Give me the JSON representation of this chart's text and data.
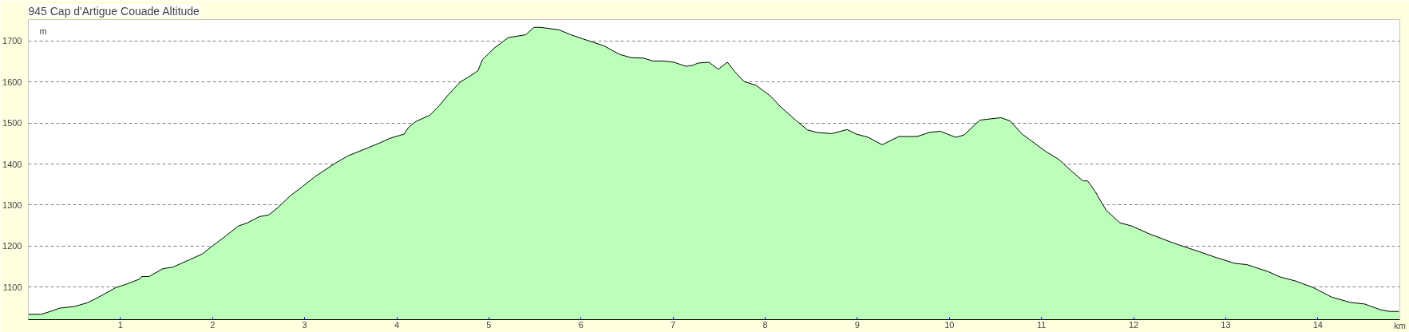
{
  "chart_data": {
    "type": "area",
    "title": "945 Cap d'Artigue Couade Altitude",
    "xlabel": "km",
    "ylabel": "m",
    "xlim": [
      0,
      14.89
    ],
    "ylim": [
      1021,
      1752
    ],
    "xticks": [
      1,
      2,
      3,
      4,
      5,
      6,
      7,
      8,
      9,
      10,
      11,
      12,
      13,
      14
    ],
    "yticks": [
      1100,
      1200,
      1300,
      1400,
      1500,
      1600,
      1700
    ],
    "grid": "y",
    "series": [
      {
        "color": "#bbffbb",
        "x": [
          0,
          0.14,
          0.24,
          0.34,
          0.5,
          0.64,
          0.73,
          0.83,
          0.95,
          1.06,
          1.21,
          1.23,
          1.31,
          1.46,
          1.57,
          1.76,
          1.89,
          1.99,
          2.15,
          2.28,
          2.38,
          2.51,
          2.61,
          2.7,
          2.84,
          2.98,
          3.11,
          3.21,
          3.34,
          3.47,
          3.67,
          3.8,
          3.93,
          4.08,
          4.13,
          4.21,
          4.36,
          4.46,
          4.56,
          4.69,
          4.8,
          4.88,
          4.93,
          5.05,
          5.21,
          5.4,
          5.49,
          5.56,
          5.76,
          5.89,
          6.02,
          6.25,
          6.42,
          6.55,
          6.68,
          6.78,
          6.89,
          7.01,
          7.14,
          7.22,
          7.27,
          7.39,
          7.49,
          7.59,
          7.67,
          7.77,
          7.9,
          8.06,
          8.16,
          8.33,
          8.46,
          8.56,
          8.72,
          8.89,
          8.99,
          9.12,
          9.27,
          9.45,
          9.65,
          9.78,
          9.9,
          10.07,
          10.16,
          10.33,
          10.56,
          10.66,
          10.79,
          11.05,
          11.19,
          11.32,
          11.45,
          11.5,
          11.58,
          11.7,
          11.85,
          11.98,
          12.17,
          12.44,
          12.64,
          12.9,
          13.1,
          13.23,
          13.46,
          13.59,
          13.76,
          13.95,
          14.15,
          14.35,
          14.51,
          14.68,
          14.78,
          14.88
        ],
        "values": [
          1034,
          1034,
          1041,
          1049,
          1053,
          1062,
          1072,
          1084,
          1099,
          1107,
          1120,
          1126,
          1126,
          1145,
          1149,
          1168,
          1181,
          1199,
          1226,
          1249,
          1257,
          1272,
          1276,
          1292,
          1322,
          1346,
          1369,
          1384,
          1403,
          1420,
          1438,
          1450,
          1463,
          1473,
          1490,
          1504,
          1519,
          1542,
          1569,
          1600,
          1615,
          1627,
          1654,
          1681,
          1708,
          1715,
          1733,
          1733,
          1727,
          1715,
          1705,
          1688,
          1667,
          1659,
          1658,
          1651,
          1651,
          1648,
          1638,
          1641,
          1646,
          1648,
          1631,
          1648,
          1625,
          1601,
          1592,
          1565,
          1541,
          1507,
          1483,
          1477,
          1474,
          1484,
          1473,
          1465,
          1447,
          1467,
          1467,
          1477,
          1480,
          1465,
          1471,
          1507,
          1513,
          1505,
          1473,
          1430,
          1411,
          1384,
          1359,
          1359,
          1334,
          1288,
          1257,
          1249,
          1230,
          1207,
          1192,
          1172,
          1158,
          1155,
          1138,
          1125,
          1115,
          1099,
          1076,
          1063,
          1059,
          1045,
          1041,
          1041
        ]
      }
    ]
  }
}
